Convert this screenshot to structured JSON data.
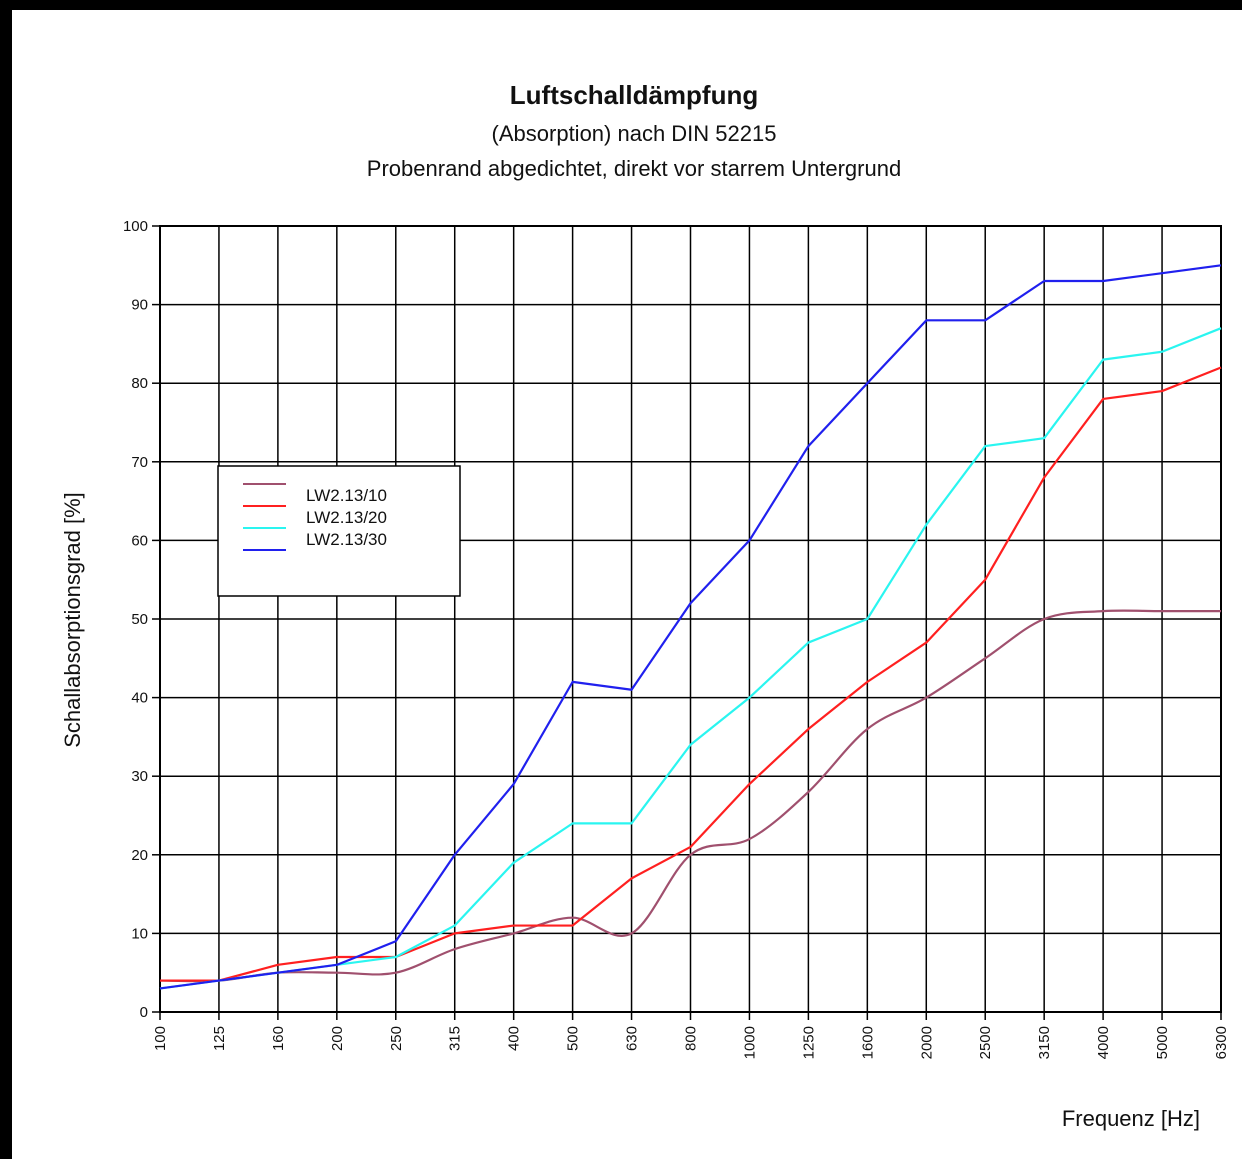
{
  "chart_data": {
    "type": "line",
    "title": "Luftschalldämpfung",
    "subtitle_1": "(Absorption) nach DIN 52215",
    "subtitle_2": "Probenrand abgedichtet, direkt vor starrem Untergrund",
    "xlabel": "Frequenz [Hz]",
    "ylabel": "Schallabsorptionsgrad [%]",
    "ylim": [
      0,
      100
    ],
    "yticks": [
      0,
      10,
      20,
      30,
      40,
      50,
      60,
      70,
      80,
      90,
      100
    ],
    "categories": [
      "100",
      "125",
      "160",
      "200",
      "250",
      "315",
      "400",
      "500",
      "630",
      "800",
      "1000",
      "1250",
      "1600",
      "2000",
      "2500",
      "3150",
      "4000",
      "5000",
      "6300"
    ],
    "grid": true,
    "legend_position": "left",
    "series": [
      {
        "name": "LW2.13/10",
        "color": "#a0506e",
        "smooth": true,
        "values": [
          4,
          4,
          5,
          5,
          5,
          8,
          10,
          12,
          10,
          20,
          22,
          28,
          36,
          40,
          45,
          50,
          51,
          51,
          51
        ]
      },
      {
        "name": "LW2.13/20",
        "color": "#ff2020",
        "smooth": false,
        "values": [
          4,
          4,
          6,
          7,
          7,
          10,
          11,
          11,
          17,
          21,
          29,
          36,
          42,
          47,
          55,
          68,
          78,
          79,
          82
        ]
      },
      {
        "name": "LW2.13/30",
        "color": "#2af5f0",
        "smooth": false,
        "values": [
          3,
          4,
          5,
          6,
          7,
          11,
          19,
          24,
          24,
          34,
          40,
          47,
          50,
          62,
          72,
          73,
          83,
          84,
          87
        ]
      },
      {
        "name": "",
        "color": "#2020ee",
        "smooth": false,
        "values": [
          3,
          4,
          5,
          6,
          9,
          20,
          29,
          42,
          41,
          52,
          60,
          72,
          80,
          88,
          88,
          93,
          93,
          94,
          95
        ]
      }
    ]
  }
}
